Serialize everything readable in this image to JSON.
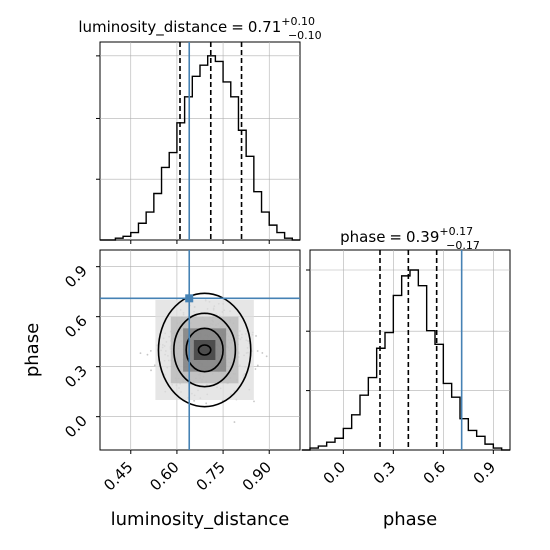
{
  "chart_data": [
    {
      "type": "histogram",
      "panel": "luminosity_distance-marginal",
      "title_param": "luminosity_distance",
      "title_value": "0.71",
      "title_plus": "+0.10",
      "title_minus": "−0.10",
      "bin_width": 0.025,
      "bins_left": [
        0.35,
        0.375,
        0.4,
        0.425,
        0.45,
        0.475,
        0.5,
        0.525,
        0.55,
        0.575,
        0.6,
        0.625,
        0.65,
        0.675,
        0.7,
        0.725,
        0.75,
        0.775,
        0.8,
        0.825,
        0.85,
        0.875,
        0.9,
        0.925,
        0.95,
        0.975
      ],
      "counts": [
        0,
        0,
        0.01,
        0.02,
        0.04,
        0.09,
        0.15,
        0.25,
        0.39,
        0.47,
        0.63,
        0.77,
        0.88,
        0.94,
        0.99,
        0.96,
        0.85,
        0.77,
        0.59,
        0.45,
        0.26,
        0.15,
        0.08,
        0.04,
        0.01,
        0
      ],
      "quantiles": [
        0.61,
        0.71,
        0.81
      ],
      "truth": 0.64,
      "xlim": [
        0.35,
        1.0
      ],
      "xticks": [
        0.45,
        0.6,
        0.75,
        0.9
      ],
      "grid": true
    },
    {
      "type": "contour-2d",
      "panel": "luminosity_distance-vs-phase",
      "xlabel": "luminosity_distance",
      "ylabel": "phase",
      "xlim": [
        0.35,
        1.0
      ],
      "ylim": [
        -0.2,
        1.0
      ],
      "xticks": [
        "0.45",
        "0.60",
        "0.75",
        "0.90"
      ],
      "yticks": [
        "0.0",
        "0.3",
        "0.6",
        "0.9"
      ],
      "peak": [
        0.69,
        0.4
      ],
      "contour_levels": [
        {
          "name": "level-1",
          "rx": 0.02,
          "ry": 0.03
        },
        {
          "name": "level-2",
          "rx": 0.06,
          "ry": 0.13
        },
        {
          "name": "level-3",
          "rx": 0.1,
          "ry": 0.22
        },
        {
          "name": "level-4",
          "rx": 0.15,
          "ry": 0.34
        }
      ],
      "truth": [
        0.64,
        0.71
      ],
      "grid": true
    },
    {
      "type": "histogram",
      "panel": "phase-marginal",
      "title_param": "phase",
      "title_value": "0.39",
      "title_plus": "+0.17",
      "title_minus": "−0.17",
      "xlabel": "phase",
      "bin_width": 0.05,
      "bins_left": [
        -0.25,
        -0.2,
        -0.15,
        -0.1,
        -0.05,
        0.0,
        0.05,
        0.1,
        0.15,
        0.2,
        0.25,
        0.3,
        0.35,
        0.4,
        0.45,
        0.5,
        0.55,
        0.6,
        0.65,
        0.7,
        0.75,
        0.8,
        0.85,
        0.9,
        0.95
      ],
      "counts": [
        0,
        0.01,
        0.02,
        0.04,
        0.06,
        0.11,
        0.18,
        0.28,
        0.37,
        0.52,
        0.6,
        0.79,
        0.89,
        0.92,
        0.84,
        0.61,
        0.54,
        0.34,
        0.27,
        0.16,
        0.1,
        0.07,
        0.03,
        0.01,
        0
      ],
      "quantiles": [
        0.22,
        0.39,
        0.56
      ],
      "truth": 0.71,
      "xlim": [
        -0.2,
        1.0
      ],
      "xticks": [
        "0.0",
        "0.3",
        "0.6",
        "0.9"
      ],
      "grid": true
    }
  ],
  "colors": {
    "truth": "#4682b4",
    "line": "#000000",
    "grid": "#b0b0b0",
    "scatter": "#999999"
  }
}
